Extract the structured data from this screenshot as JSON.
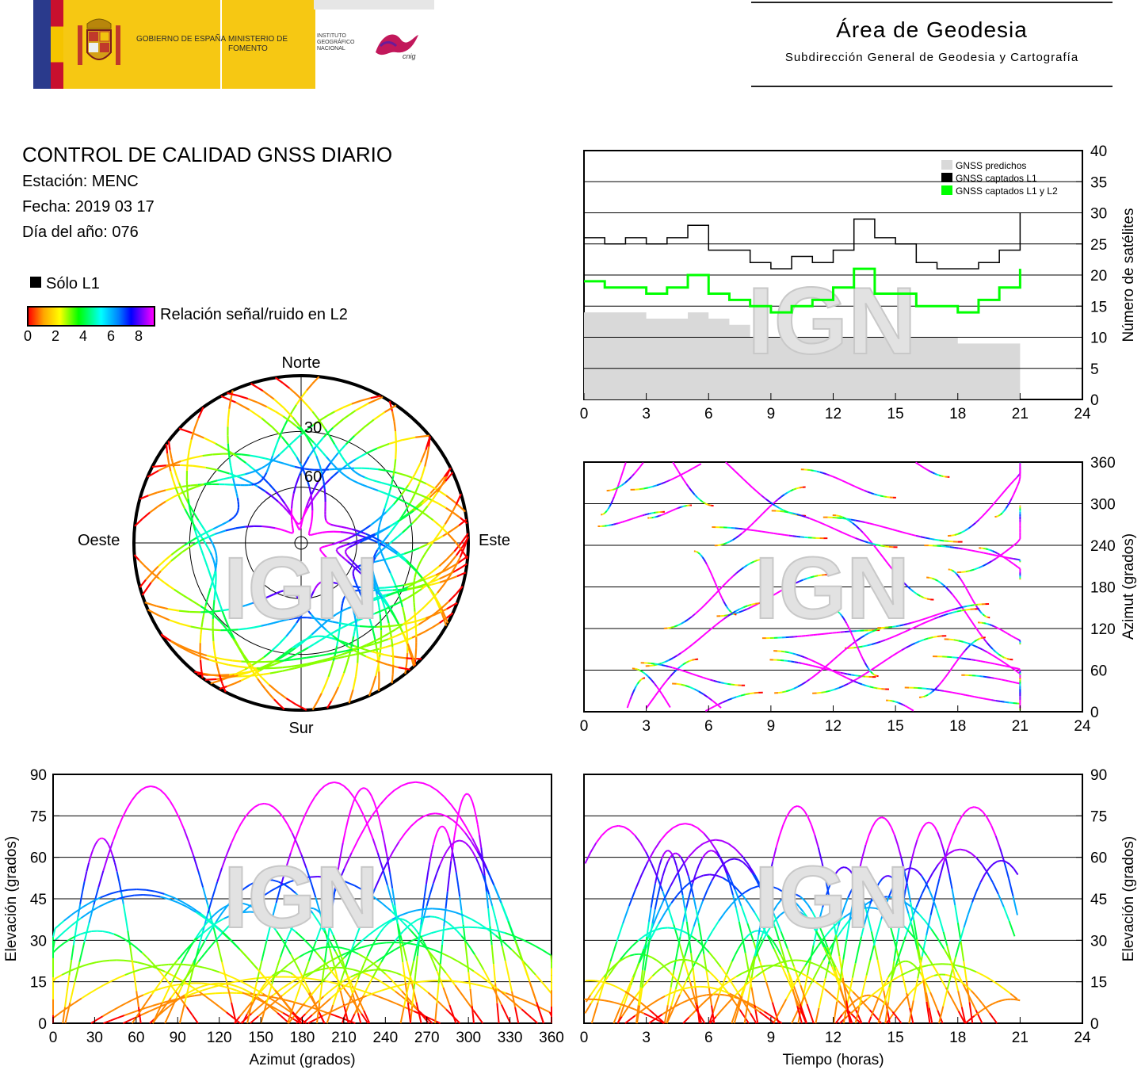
{
  "header": {
    "gobierno": "GOBIERNO DE ESPAÑA",
    "ministerio": "MINISTERIO DE FOMENTO",
    "instituto": "INSTITUTO GEOGRÁFICO NACIONAL",
    "ign_logo_text": "cnig",
    "area_title": "Área de Geodesia",
    "area_subtitle": "Subdirección General de Geodesia y Cartografía"
  },
  "info": {
    "title": "CONTROL DE CALIDAD GNSS DIARIO",
    "station": "Estación: MENC",
    "date": "Fecha: 2019 03 17",
    "doy": "Día del año: 076"
  },
  "legend": {
    "l1_only": "Sólo L1",
    "snr_label": "Relación señal/ruido en L2",
    "snr_ticks": [
      "0",
      "2",
      "4",
      "6",
      "8"
    ]
  },
  "watermark": "IGN",
  "chart_data": [
    {
      "type": "line",
      "id": "satellite_count",
      "ylabel": "Número de satélites",
      "xlim": [
        0,
        24
      ],
      "ylim": [
        0,
        40
      ],
      "xticks": [
        0,
        3,
        6,
        9,
        12,
        15,
        18,
        21,
        24
      ],
      "yticks": [
        0,
        5,
        10,
        15,
        20,
        25,
        30,
        35,
        40
      ],
      "grid": true,
      "legend_position": "top-right",
      "x": [
        0,
        1,
        2,
        3,
        4,
        5,
        6,
        7,
        8,
        9,
        10,
        11,
        12,
        13,
        14,
        15,
        16,
        17,
        18,
        19,
        20,
        21
      ],
      "series": [
        {
          "name": "GNSS predichos",
          "color": "#d9d9d9",
          "values": [
            14,
            14,
            14,
            13,
            13,
            14,
            13,
            12,
            10,
            10,
            10,
            10,
            10,
            10,
            10,
            10,
            10,
            10,
            9,
            9,
            9,
            14
          ]
        },
        {
          "name": "GNSS captados L1",
          "color": "#000000",
          "values": [
            26,
            25,
            26,
            25,
            26,
            28,
            24,
            24,
            22,
            21,
            23,
            22,
            24,
            29,
            26,
            25,
            22,
            21,
            21,
            22,
            24,
            30
          ]
        },
        {
          "name": "GNSS captados L1 y L2",
          "color": "#00ff00",
          "values": [
            19,
            18,
            18,
            17,
            18,
            20,
            17,
            16,
            15,
            14,
            15,
            16,
            18,
            21,
            17,
            17,
            15,
            15,
            14,
            16,
            18,
            21
          ]
        }
      ]
    },
    {
      "type": "scatter",
      "id": "skyplot",
      "polar": true,
      "direction_labels": {
        "north": "Norte",
        "south": "Sur",
        "east": "Este",
        "west": "Oeste"
      },
      "elevation_rings": [
        0,
        30,
        60
      ],
      "ring_labels": [
        "30",
        "60"
      ]
    },
    {
      "type": "scatter",
      "id": "azimuth_vs_time",
      "ylabel": "Azimut (grados)",
      "xlim": [
        0,
        24
      ],
      "ylim": [
        0,
        360
      ],
      "xticks": [
        0,
        3,
        6,
        9,
        12,
        15,
        18,
        21,
        24
      ],
      "yticks": [
        0,
        60,
        120,
        180,
        240,
        300,
        360
      ],
      "grid": true
    },
    {
      "type": "scatter",
      "id": "elevation_vs_azimuth",
      "xlabel": "Azimut (grados)",
      "ylabel": "Elevación (grados)",
      "xlim": [
        0,
        360
      ],
      "ylim": [
        0,
        90
      ],
      "xticks": [
        0,
        30,
        60,
        90,
        120,
        150,
        180,
        210,
        240,
        270,
        300,
        330,
        360
      ],
      "yticks": [
        0,
        15,
        30,
        45,
        60,
        75,
        90
      ],
      "grid": true
    },
    {
      "type": "scatter",
      "id": "elevation_vs_time",
      "xlabel": "Tiempo (horas)",
      "ylabel": "Elevación (grados)",
      "xlim": [
        0,
        24
      ],
      "ylim": [
        0,
        90
      ],
      "xticks": [
        0,
        3,
        6,
        9,
        12,
        15,
        18,
        21,
        24
      ],
      "yticks": [
        0,
        15,
        30,
        45,
        60,
        75,
        90
      ],
      "grid": true
    }
  ]
}
